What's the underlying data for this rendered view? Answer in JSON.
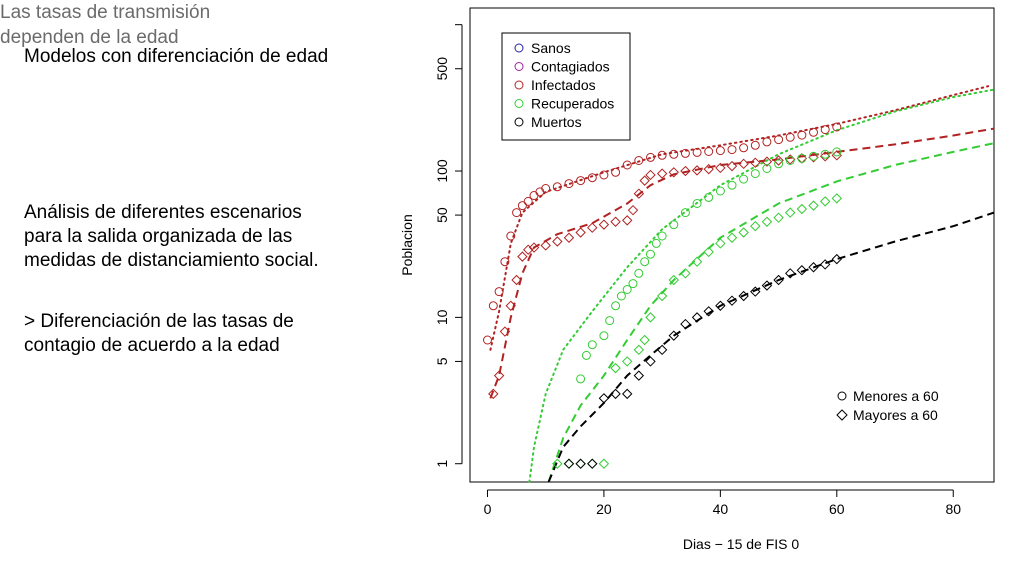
{
  "slide": {
    "title": "Modelos con diferenciación de edad",
    "para1": [
      "Análisis de diferentes escenarios",
      "para la salida organizada de las",
      "medidas de distanciamiento social."
    ],
    "para2": [
      "> Diferenciación de las tasas de",
      "contagio de acuerdo a la edad"
    ],
    "note": [
      "Las tasas de transmisión",
      "dependen de la edad"
    ]
  },
  "colors": {
    "sanos": "#2222aa",
    "contagiados": "#a020a0",
    "infectados": "#b22222",
    "recuperados": "#33cc33",
    "muertos": "#000000"
  },
  "chart_data": {
    "type": "scatter",
    "xlabel": "Dias − 15 de FIS  0",
    "ylabel": "Poblacion",
    "xlim": [
      -3,
      87
    ],
    "ylim_log": [
      0.75,
      1300
    ],
    "y_scale": "log",
    "x_ticks": [
      0,
      20,
      40,
      60,
      80
    ],
    "y_ticks": [
      1,
      5,
      10,
      50,
      100,
      500
    ],
    "legend_series": {
      "placement": "top-left",
      "entries": [
        {
          "label": "Sanos",
          "color_key": "sanos"
        },
        {
          "label": "Contagiados",
          "color_key": "contagiados"
        },
        {
          "label": "Infectados",
          "color_key": "infectados"
        },
        {
          "label": "Recuperados",
          "color_key": "recuperados"
        },
        {
          "label": "Muertos",
          "color_key": "muertos"
        }
      ]
    },
    "legend_markers": {
      "placement": "bottom-right",
      "entries": [
        {
          "label": "Menores a 60",
          "marker": "circle"
        },
        {
          "label": "Mayores a 60",
          "marker": "diamond"
        }
      ]
    },
    "series": [
      {
        "group": "infectados",
        "marker": "circle",
        "points": [
          [
            0,
            7
          ],
          [
            1,
            12
          ],
          [
            2,
            15
          ],
          [
            3,
            24
          ],
          [
            4,
            36
          ],
          [
            5,
            52
          ],
          [
            6,
            58
          ],
          [
            7,
            62
          ],
          [
            8,
            68
          ],
          [
            9,
            72
          ],
          [
            10,
            76
          ],
          [
            12,
            78
          ],
          [
            14,
            82
          ],
          [
            16,
            86
          ],
          [
            18,
            90
          ],
          [
            20,
            94
          ],
          [
            22,
            98
          ],
          [
            24,
            110
          ],
          [
            26,
            118
          ],
          [
            28,
            124
          ],
          [
            30,
            128
          ],
          [
            32,
            130
          ],
          [
            34,
            132
          ],
          [
            36,
            134
          ],
          [
            38,
            136
          ],
          [
            40,
            138
          ],
          [
            42,
            140
          ],
          [
            44,
            144
          ],
          [
            46,
            150
          ],
          [
            48,
            158
          ],
          [
            50,
            164
          ],
          [
            52,
            170
          ],
          [
            54,
            176
          ],
          [
            56,
            184
          ],
          [
            58,
            192
          ],
          [
            60,
            200
          ]
        ]
      },
      {
        "group": "infectados",
        "marker": "diamond",
        "points": [
          [
            1,
            3
          ],
          [
            2,
            4
          ],
          [
            3,
            8
          ],
          [
            4,
            12
          ],
          [
            5,
            18
          ],
          [
            6,
            26
          ],
          [
            7,
            29
          ],
          [
            8,
            30
          ],
          [
            10,
            31
          ],
          [
            12,
            33
          ],
          [
            14,
            35
          ],
          [
            16,
            38
          ],
          [
            18,
            41
          ],
          [
            20,
            43
          ],
          [
            22,
            45
          ],
          [
            24,
            46
          ],
          [
            25,
            54
          ],
          [
            26,
            70
          ],
          [
            27,
            86
          ],
          [
            28,
            94
          ],
          [
            30,
            96
          ],
          [
            32,
            98
          ],
          [
            34,
            100
          ],
          [
            36,
            101
          ],
          [
            38,
            103
          ],
          [
            40,
            105
          ],
          [
            42,
            108
          ],
          [
            44,
            112
          ],
          [
            46,
            114
          ],
          [
            48,
            116
          ],
          [
            50,
            118
          ],
          [
            52,
            120
          ],
          [
            54,
            122
          ],
          [
            56,
            124
          ],
          [
            58,
            126
          ],
          [
            60,
            128
          ]
        ]
      },
      {
        "group": "recuperados",
        "marker": "circle",
        "points": [
          [
            16,
            3.8
          ],
          [
            17,
            5.5
          ],
          [
            18,
            6.5
          ],
          [
            20,
            7.5
          ],
          [
            21,
            9.5
          ],
          [
            22,
            12
          ],
          [
            23,
            14
          ],
          [
            24,
            15.5
          ],
          [
            25,
            17
          ],
          [
            26,
            20
          ],
          [
            27,
            24
          ],
          [
            28,
            27
          ],
          [
            29,
            32
          ],
          [
            30,
            36
          ],
          [
            32,
            43
          ],
          [
            34,
            52
          ],
          [
            36,
            60
          ],
          [
            38,
            66
          ],
          [
            40,
            73
          ],
          [
            42,
            80
          ],
          [
            44,
            88
          ],
          [
            46,
            96
          ],
          [
            48,
            104
          ],
          [
            50,
            112
          ],
          [
            52,
            118
          ],
          [
            54,
            122
          ],
          [
            56,
            126
          ],
          [
            58,
            130
          ],
          [
            60,
            135
          ]
        ]
      },
      {
        "group": "recuperados",
        "marker": "diamond",
        "points": [
          [
            12,
            1
          ],
          [
            14,
            1
          ],
          [
            16,
            1
          ],
          [
            18,
            1
          ],
          [
            20,
            1
          ],
          [
            22,
            4.5
          ],
          [
            24,
            5
          ],
          [
            26,
            6
          ],
          [
            27,
            7
          ],
          [
            28,
            10
          ],
          [
            30,
            14
          ],
          [
            32,
            18
          ],
          [
            34,
            20
          ],
          [
            36,
            24
          ],
          [
            38,
            28
          ],
          [
            40,
            32
          ],
          [
            42,
            35
          ],
          [
            44,
            38
          ],
          [
            46,
            42
          ],
          [
            48,
            45
          ],
          [
            50,
            48
          ],
          [
            52,
            52
          ],
          [
            54,
            55
          ],
          [
            56,
            58
          ],
          [
            58,
            62
          ],
          [
            60,
            65
          ]
        ]
      },
      {
        "group": "muertos",
        "marker": "diamond",
        "points": [
          [
            14,
            1
          ],
          [
            16,
            1
          ],
          [
            18,
            1
          ],
          [
            20,
            2.8
          ],
          [
            22,
            3
          ],
          [
            24,
            3
          ],
          [
            26,
            4
          ],
          [
            28,
            5
          ],
          [
            30,
            6
          ],
          [
            32,
            7.5
          ],
          [
            34,
            9
          ],
          [
            36,
            10
          ],
          [
            38,
            11
          ],
          [
            40,
            12
          ],
          [
            42,
            13
          ],
          [
            44,
            14
          ],
          [
            46,
            15
          ],
          [
            48,
            16.5
          ],
          [
            50,
            18
          ],
          [
            52,
            20
          ],
          [
            54,
            21
          ],
          [
            56,
            22
          ],
          [
            58,
            23
          ],
          [
            60,
            25
          ]
        ]
      }
    ],
    "fits": [
      {
        "group": "infectados",
        "style": "dotted",
        "points": [
          [
            0.5,
            6
          ],
          [
            2,
            11
          ],
          [
            4,
            32
          ],
          [
            6,
            52
          ],
          [
            10,
            72
          ],
          [
            20,
            98
          ],
          [
            30,
            130
          ],
          [
            40,
            150
          ],
          [
            50,
            175
          ],
          [
            60,
            210
          ],
          [
            70,
            260
          ],
          [
            80,
            330
          ],
          [
            86,
            380
          ]
        ]
      },
      {
        "group": "infectados",
        "style": "dashed",
        "points": [
          [
            0.5,
            2.8
          ],
          [
            2,
            4
          ],
          [
            4,
            10
          ],
          [
            6,
            20
          ],
          [
            8,
            30
          ],
          [
            12,
            37
          ],
          [
            18,
            44
          ],
          [
            24,
            60
          ],
          [
            28,
            80
          ],
          [
            32,
            95
          ],
          [
            40,
            110
          ],
          [
            50,
            120
          ],
          [
            60,
            135
          ],
          [
            70,
            152
          ],
          [
            80,
            175
          ],
          [
            87,
            195
          ]
        ]
      },
      {
        "group": "recuperados",
        "style": "dotted",
        "points": [
          [
            7.2,
            0.75
          ],
          [
            8,
            1.3
          ],
          [
            10,
            3
          ],
          [
            13,
            6
          ],
          [
            18,
            11
          ],
          [
            24,
            22
          ],
          [
            30,
            40
          ],
          [
            40,
            80
          ],
          [
            50,
            130
          ],
          [
            60,
            190
          ],
          [
            70,
            255
          ],
          [
            80,
            320
          ],
          [
            87,
            360
          ]
        ]
      },
      {
        "group": "recuperados",
        "style": "dashed",
        "points": [
          [
            10.5,
            0.75
          ],
          [
            13,
            1.5
          ],
          [
            16,
            2.5
          ],
          [
            20,
            4
          ],
          [
            24,
            7
          ],
          [
            28,
            12
          ],
          [
            32,
            18
          ],
          [
            40,
            35
          ],
          [
            50,
            60
          ],
          [
            60,
            85
          ],
          [
            70,
            110
          ],
          [
            80,
            135
          ],
          [
            87,
            155
          ]
        ]
      },
      {
        "group": "muertos",
        "style": "dashed",
        "points": [
          [
            10.5,
            0.75
          ],
          [
            13,
            1.3
          ],
          [
            16,
            1.8
          ],
          [
            20,
            2.6
          ],
          [
            24,
            4
          ],
          [
            28,
            5.5
          ],
          [
            32,
            7.5
          ],
          [
            40,
            12
          ],
          [
            50,
            18
          ],
          [
            60,
            25
          ],
          [
            70,
            33
          ],
          [
            80,
            42
          ],
          [
            87,
            52
          ]
        ]
      }
    ]
  }
}
